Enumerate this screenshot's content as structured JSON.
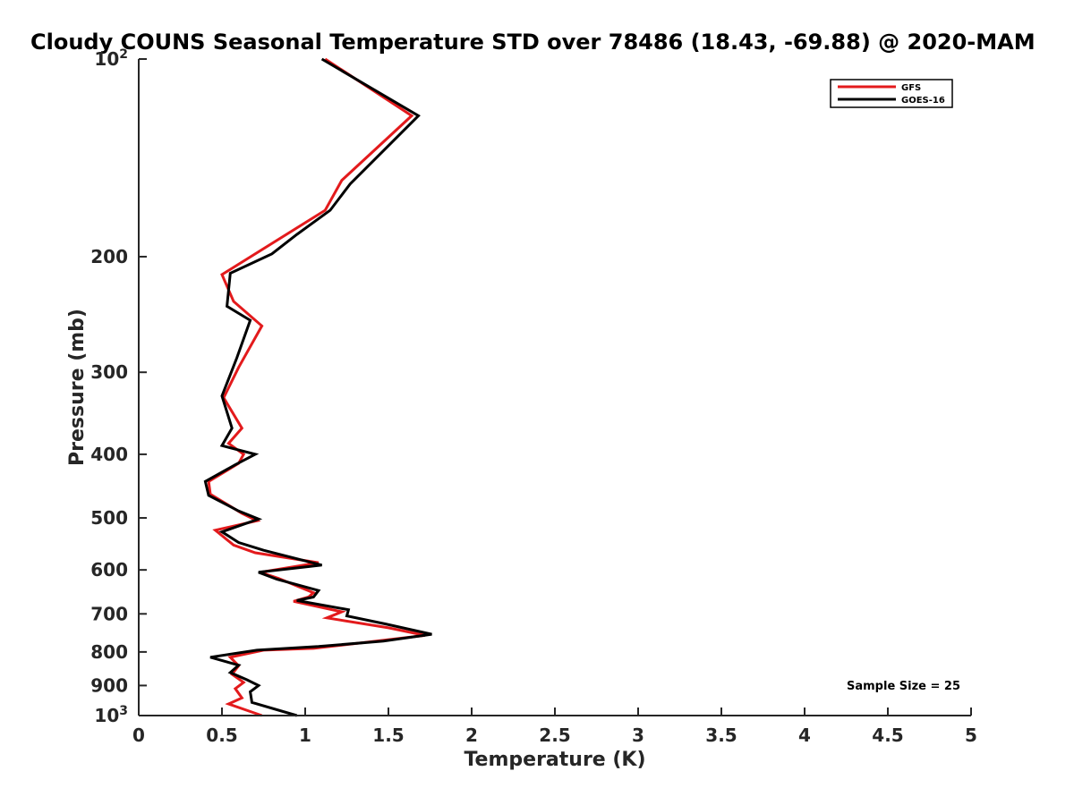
{
  "chart_data": {
    "type": "line",
    "title": "Cloudy COUNS Seasonal Temperature STD over 78486 (18.43, -69.88) @ 2020-MAM",
    "xlabel": "Temperature (K)",
    "ylabel": "Pressure (mb)",
    "xlim": [
      0,
      5
    ],
    "ylim": [
      100,
      1000
    ],
    "yscale": "log",
    "y_reversed": true,
    "grid": false,
    "legend_position": "top-right",
    "xticks": [
      {
        "value": 0,
        "label": "0"
      },
      {
        "value": 0.5,
        "label": "0.5"
      },
      {
        "value": 1,
        "label": "1"
      },
      {
        "value": 1.5,
        "label": "1.5"
      },
      {
        "value": 2,
        "label": "2"
      },
      {
        "value": 2.5,
        "label": "2.5"
      },
      {
        "value": 3,
        "label": "3"
      },
      {
        "value": 3.5,
        "label": "3.5"
      },
      {
        "value": 4,
        "label": "4"
      },
      {
        "value": 4.5,
        "label": "4.5"
      },
      {
        "value": 5,
        "label": "5"
      }
    ],
    "yticks": [
      {
        "value": 100,
        "label": "10",
        "sup": "2"
      },
      {
        "value": 200,
        "label": "200",
        "sup": ""
      },
      {
        "value": 300,
        "label": "300",
        "sup": ""
      },
      {
        "value": 400,
        "label": "400",
        "sup": ""
      },
      {
        "value": 500,
        "label": "500",
        "sup": ""
      },
      {
        "value": 600,
        "label": "600",
        "sup": ""
      },
      {
        "value": 700,
        "label": "700",
        "sup": ""
      },
      {
        "value": 800,
        "label": "800",
        "sup": ""
      },
      {
        "value": 900,
        "label": "900",
        "sup": ""
      },
      {
        "value": 1000,
        "label": "10",
        "sup": "3"
      }
    ],
    "series": [
      {
        "name": "GFS",
        "color": "#e31a1c",
        "points": [
          [
            1.12,
            100
          ],
          [
            1.64,
            122
          ],
          [
            1.22,
            153
          ],
          [
            1.12,
            170
          ],
          [
            0.5,
            213
          ],
          [
            0.57,
            234
          ],
          [
            0.74,
            255
          ],
          [
            0.6,
            295
          ],
          [
            0.51,
            328
          ],
          [
            0.62,
            365
          ],
          [
            0.54,
            385
          ],
          [
            0.63,
            400
          ],
          [
            0.6,
            413
          ],
          [
            0.42,
            440
          ],
          [
            0.43,
            460
          ],
          [
            0.62,
            492
          ],
          [
            0.71,
            505
          ],
          [
            0.46,
            522
          ],
          [
            0.57,
            550
          ],
          [
            0.7,
            565
          ],
          [
            1.08,
            585
          ],
          [
            0.73,
            605
          ],
          [
            0.84,
            618
          ],
          [
            1.05,
            650
          ],
          [
            1.02,
            660
          ],
          [
            0.93,
            670
          ],
          [
            1.22,
            695
          ],
          [
            1.13,
            710
          ],
          [
            1.5,
            735
          ],
          [
            1.72,
            755
          ],
          [
            1.05,
            790
          ],
          [
            0.75,
            795
          ],
          [
            0.55,
            815
          ],
          [
            0.6,
            840
          ],
          [
            0.56,
            865
          ],
          [
            0.63,
            890
          ],
          [
            0.58,
            910
          ],
          [
            0.62,
            940
          ],
          [
            0.54,
            960
          ],
          [
            0.74,
            1000
          ]
        ]
      },
      {
        "name": "GOES-16",
        "color": "#000000",
        "points": [
          [
            1.1,
            100
          ],
          [
            1.68,
            122
          ],
          [
            1.27,
            155
          ],
          [
            1.15,
            170
          ],
          [
            0.95,
            185
          ],
          [
            0.8,
            198
          ],
          [
            0.55,
            212
          ],
          [
            0.53,
            238
          ],
          [
            0.67,
            250
          ],
          [
            0.59,
            285
          ],
          [
            0.5,
            326
          ],
          [
            0.56,
            365
          ],
          [
            0.5,
            388
          ],
          [
            0.7,
            400
          ],
          [
            0.58,
            415
          ],
          [
            0.4,
            440
          ],
          [
            0.42,
            462
          ],
          [
            0.6,
            488
          ],
          [
            0.72,
            502
          ],
          [
            0.5,
            525
          ],
          [
            0.6,
            545
          ],
          [
            0.75,
            560
          ],
          [
            1.1,
            590
          ],
          [
            0.72,
            605
          ],
          [
            0.83,
            620
          ],
          [
            1.08,
            645
          ],
          [
            1.05,
            660
          ],
          [
            0.95,
            668
          ],
          [
            1.26,
            690
          ],
          [
            1.25,
            705
          ],
          [
            1.48,
            725
          ],
          [
            1.76,
            752
          ],
          [
            1.47,
            770
          ],
          [
            1.08,
            785
          ],
          [
            0.71,
            795
          ],
          [
            0.43,
            815
          ],
          [
            0.6,
            838
          ],
          [
            0.55,
            860
          ],
          [
            0.65,
            882
          ],
          [
            0.72,
            900
          ],
          [
            0.67,
            920
          ],
          [
            0.68,
            955
          ],
          [
            0.95,
            1000
          ]
        ]
      }
    ],
    "annotation": "Sample Size = 25"
  }
}
